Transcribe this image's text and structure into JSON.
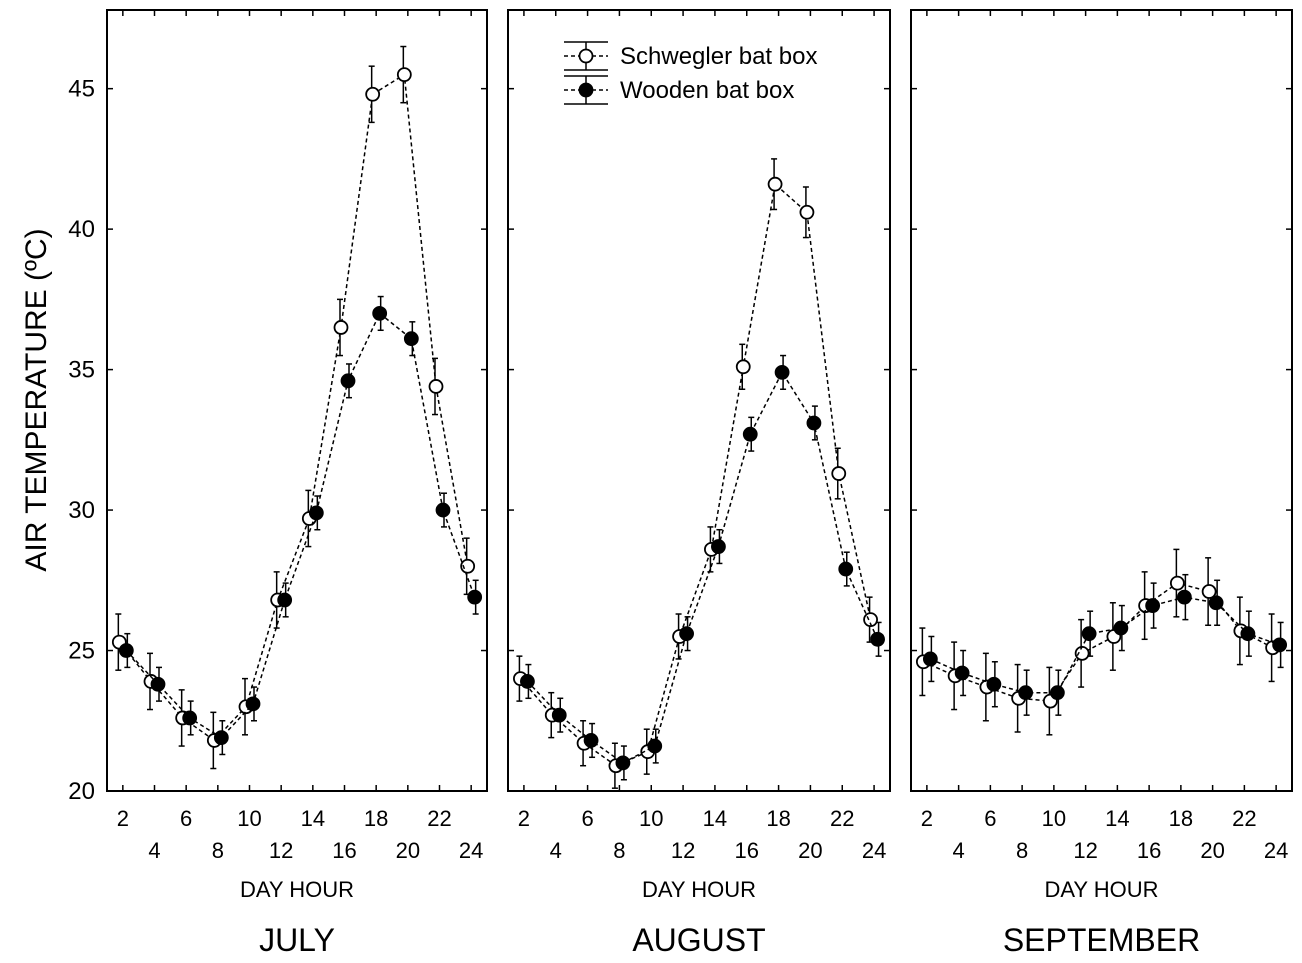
{
  "chart_data": {
    "type": "line",
    "ylabel": "AIR TEMPERATURE (ºC)",
    "ylim": [
      20,
      47.8
    ],
    "yticks": [
      20,
      25,
      30,
      35,
      40,
      45
    ],
    "xlim": [
      1,
      25
    ],
    "xticks": [
      2,
      4,
      6,
      8,
      10,
      12,
      14,
      16,
      18,
      20,
      22,
      24
    ],
    "error_bars": true,
    "line_style": "dashed",
    "legend": {
      "placement": "top-center of second panel",
      "entries": [
        {
          "name": "Schwegler bat box",
          "marker": "open-circle"
        },
        {
          "name": "Wooden bat box",
          "marker": "filled-circle"
        }
      ]
    },
    "panels": [
      {
        "month": "JULY",
        "xlabel": "DAY HOUR",
        "x": [
          2,
          4,
          6,
          8,
          10,
          12,
          14,
          16,
          18,
          20,
          22,
          24
        ],
        "series": [
          {
            "name": "Schwegler bat box",
            "values": [
              25.3,
              23.9,
              22.6,
              21.8,
              23.0,
              26.8,
              29.7,
              36.5,
              44.8,
              45.5,
              34.4,
              28.0
            ],
            "error": [
              1.0,
              1.0,
              1.0,
              1.0,
              1.0,
              1.0,
              1.0,
              1.0,
              1.0,
              1.0,
              1.0,
              1.0
            ]
          },
          {
            "name": "Wooden bat box",
            "values": [
              25.0,
              23.8,
              22.6,
              21.9,
              23.1,
              26.8,
              29.9,
              34.6,
              37.0,
              36.1,
              30.0,
              26.9
            ],
            "error": [
              0.6,
              0.6,
              0.6,
              0.6,
              0.6,
              0.6,
              0.6,
              0.6,
              0.6,
              0.6,
              0.6,
              0.6
            ]
          }
        ]
      },
      {
        "month": "AUGUST",
        "xlabel": "DAY HOUR",
        "x": [
          2,
          4,
          6,
          8,
          10,
          12,
          14,
          16,
          18,
          20,
          22,
          24
        ],
        "series": [
          {
            "name": "Schwegler bat box",
            "values": [
              24.0,
              22.7,
              21.7,
              20.9,
              21.4,
              25.5,
              28.6,
              35.1,
              41.6,
              40.6,
              31.3,
              26.1
            ],
            "error": [
              0.8,
              0.8,
              0.8,
              0.8,
              0.8,
              0.8,
              0.8,
              0.8,
              0.9,
              0.9,
              0.9,
              0.8
            ]
          },
          {
            "name": "Wooden bat box",
            "values": [
              23.9,
              22.7,
              21.8,
              21.0,
              21.6,
              25.6,
              28.7,
              32.7,
              34.9,
              33.1,
              27.9,
              25.4
            ],
            "error": [
              0.6,
              0.6,
              0.6,
              0.6,
              0.6,
              0.6,
              0.6,
              0.6,
              0.6,
              0.6,
              0.6,
              0.6
            ]
          }
        ]
      },
      {
        "month": "SEPTEMBER",
        "xlabel": "DAY HOUR",
        "x": [
          2,
          4,
          6,
          8,
          10,
          12,
          14,
          16,
          18,
          20,
          22,
          24
        ],
        "series": [
          {
            "name": "Schwegler bat box",
            "values": [
              24.6,
              24.1,
              23.7,
              23.3,
              23.2,
              24.9,
              25.5,
              26.6,
              27.4,
              27.1,
              25.7,
              25.1
            ],
            "error": [
              1.2,
              1.2,
              1.2,
              1.2,
              1.2,
              1.2,
              1.2,
              1.2,
              1.2,
              1.2,
              1.2,
              1.2
            ]
          },
          {
            "name": "Wooden bat box",
            "values": [
              24.7,
              24.2,
              23.8,
              23.5,
              23.5,
              25.6,
              25.8,
              26.6,
              26.9,
              26.7,
              25.6,
              25.2
            ],
            "error": [
              0.8,
              0.8,
              0.8,
              0.8,
              0.8,
              0.8,
              0.8,
              0.8,
              0.8,
              0.8,
              0.8,
              0.8
            ]
          }
        ]
      }
    ]
  }
}
